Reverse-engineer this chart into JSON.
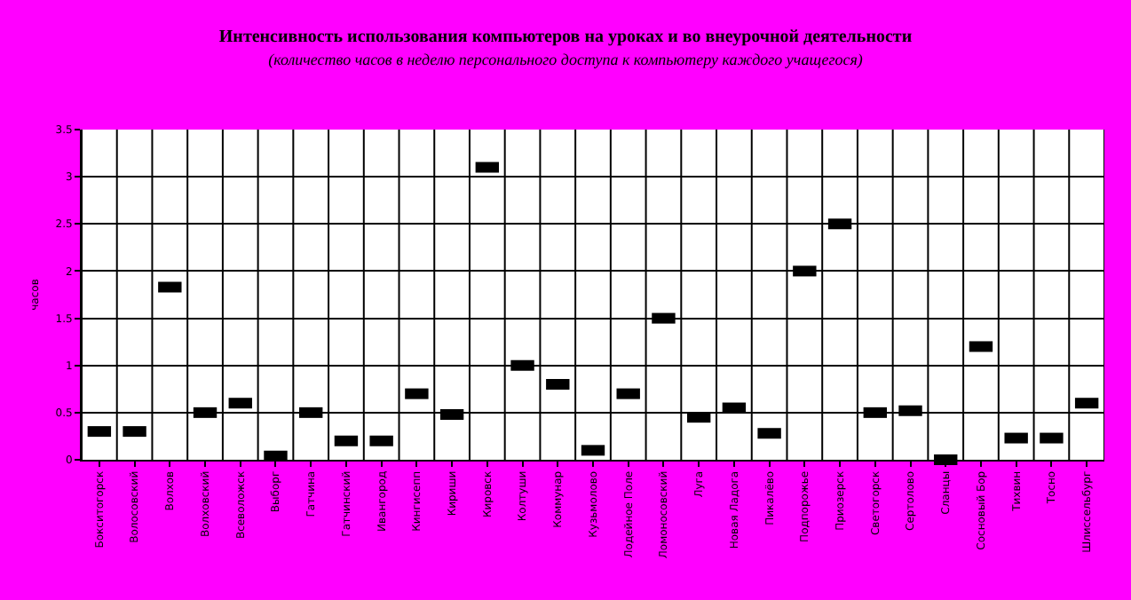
{
  "chart_data": {
    "type": "scatter",
    "title": "Интенсивность использования компьютеров на уроках и во внеурочной деятельности",
    "subtitle": "(количество часов в неделю персонального доступа к компьютеру каждого учащегося)",
    "ylabel": "часов",
    "categories": [
      "Бокситогорск",
      "Волосовский",
      "Волхов",
      "Волховский",
      "Всеволожск",
      "Выборг",
      "Гатчина",
      "Гатчинский",
      "Ивангород",
      "Кингисепп",
      "Кириши",
      "Кировск",
      "Колтуши",
      "Коммунар",
      "Кузьмолово",
      "Лодейное Поле",
      "Ломоносовский",
      "Луга",
      "Новая Ладога",
      "Пикалёво",
      "Подпорожье",
      "Приозерск",
      "Светогорск",
      "Сертолово",
      "Сланцы",
      "Сосновый Бор",
      "Тихвин",
      "Тосно",
      "Шлиссельбург"
    ],
    "series": [
      {
        "color": "#000000",
        "values": [
          0.3,
          0.3,
          1.83,
          0.5,
          0.6,
          0.04,
          0.5,
          0.2,
          0.2,
          0.7,
          0.48,
          3.1,
          1.0,
          0.8,
          0.1,
          0.7,
          1.5,
          0.45,
          0.55,
          0.28,
          2.0,
          2.5,
          0.5,
          0.52,
          0.0,
          1.2,
          0.23,
          0.23,
          0.6
        ]
      }
    ],
    "ylim": [
      0,
      3.5
    ],
    "yticks": [
      0,
      0.5,
      1,
      1.5,
      2,
      2.5,
      3,
      3.5
    ],
    "grid": true,
    "marker": "square"
  }
}
